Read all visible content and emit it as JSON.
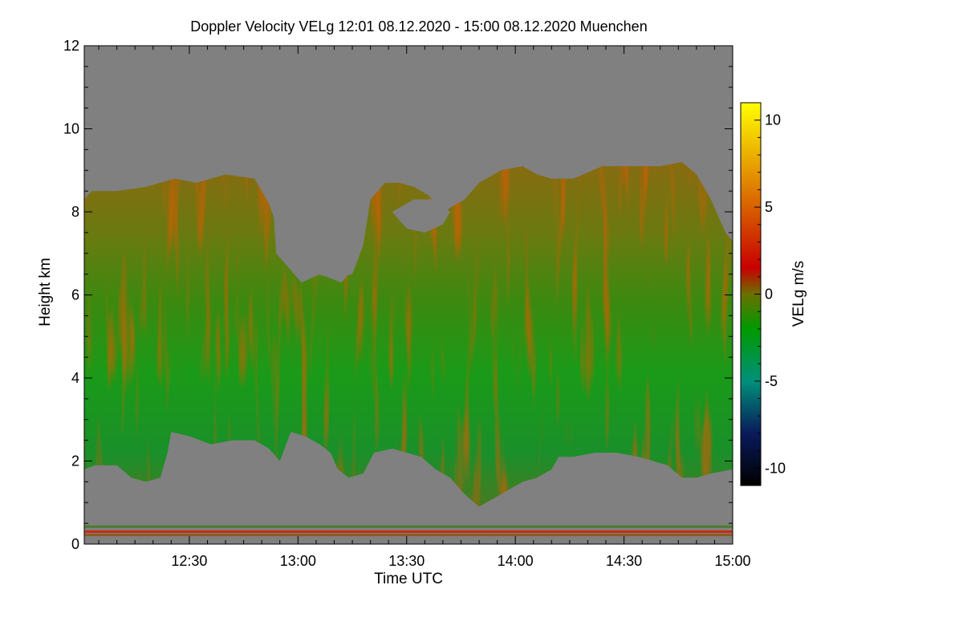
{
  "chart_data": {
    "type": "heatmap",
    "title": "Doppler Velocity VELg   12:01 08.12.2020 - 15:00 08.12.2020 Muenchen",
    "xlabel": "Time UTC",
    "ylabel": "Height km",
    "colorbar_label": "VELg m/s",
    "xlim_minutes": [
      721,
      900
    ],
    "ylim": [
      0,
      12
    ],
    "x_ticks": [
      {
        "minute": 750,
        "label": "12:30"
      },
      {
        "minute": 780,
        "label": "13:00"
      },
      {
        "minute": 810,
        "label": "13:30"
      },
      {
        "minute": 840,
        "label": "14:00"
      },
      {
        "minute": 870,
        "label": "14:30"
      },
      {
        "minute": 900,
        "label": "15:00"
      }
    ],
    "y_ticks": [
      {
        "value": 0,
        "label": "0"
      },
      {
        "value": 2,
        "label": "2"
      },
      {
        "value": 4,
        "label": "4"
      },
      {
        "value": 6,
        "label": "6"
      },
      {
        "value": 8,
        "label": "8"
      },
      {
        "value": 10,
        "label": "10"
      },
      {
        "value": 12,
        "label": "12"
      }
    ],
    "colorbar_range": [
      -11,
      11
    ],
    "colorbar_ticks": [
      {
        "value": 10,
        "label": "10"
      },
      {
        "value": 5,
        "label": "5"
      },
      {
        "value": 0,
        "label": "0"
      },
      {
        "value": -5,
        "label": "-5"
      },
      {
        "value": -10,
        "label": "-10"
      }
    ],
    "colormap": [
      {
        "value": -11,
        "color": "#000000"
      },
      {
        "value": -8,
        "color": "#0a1a5a"
      },
      {
        "value": -5,
        "color": "#00907a"
      },
      {
        "value": -2,
        "color": "#009a00"
      },
      {
        "value": 0,
        "color": "#6a7000"
      },
      {
        "value": 1.5,
        "color": "#c80000"
      },
      {
        "value": 5,
        "color": "#d86000"
      },
      {
        "value": 11,
        "color": "#ffff00"
      }
    ],
    "background_color": "#808080",
    "cloud_top_km": [
      [
        721,
        8.3
      ],
      [
        723,
        8.5
      ],
      [
        730,
        8.5
      ],
      [
        738,
        8.6
      ],
      [
        746,
        8.8
      ],
      [
        752,
        8.7
      ],
      [
        760,
        8.9
      ],
      [
        768,
        8.8
      ],
      [
        772,
        8.2
      ],
      [
        776,
        7.2
      ],
      [
        778,
        6.6
      ],
      [
        781,
        6.3
      ],
      [
        785,
        6.5
      ],
      [
        790,
        6.4
      ],
      [
        795,
        6.5
      ],
      [
        798,
        7.2
      ],
      [
        800,
        8.3
      ],
      [
        804,
        8.7
      ],
      [
        808,
        8.7
      ],
      [
        812,
        8.6
      ],
      [
        816,
        8.4
      ],
      [
        820,
        8.0
      ],
      [
        826,
        8.3
      ],
      [
        830,
        8.7
      ],
      [
        836,
        9.0
      ],
      [
        842,
        9.1
      ],
      [
        846,
        8.9
      ],
      [
        850,
        8.8
      ],
      [
        856,
        8.8
      ],
      [
        864,
        9.1
      ],
      [
        872,
        9.1
      ],
      [
        880,
        9.1
      ],
      [
        886,
        9.2
      ],
      [
        890,
        8.9
      ],
      [
        894,
        8.3
      ],
      [
        898,
        7.5
      ],
      [
        900,
        7.3
      ]
    ],
    "cloud_base_km": [
      [
        721,
        1.8
      ],
      [
        724,
        1.9
      ],
      [
        730,
        1.9
      ],
      [
        734,
        1.6
      ],
      [
        738,
        1.5
      ],
      [
        742,
        1.6
      ],
      [
        744,
        2.2
      ],
      [
        745,
        2.7
      ],
      [
        750,
        2.6
      ],
      [
        756,
        2.4
      ],
      [
        762,
        2.5
      ],
      [
        768,
        2.5
      ],
      [
        772,
        2.3
      ],
      [
        775,
        2.0
      ],
      [
        778,
        2.7
      ],
      [
        782,
        2.6
      ],
      [
        786,
        2.4
      ],
      [
        789,
        2.2
      ],
      [
        791,
        1.8
      ],
      [
        794,
        1.6
      ],
      [
        798,
        1.7
      ],
      [
        801,
        2.2
      ],
      [
        806,
        2.3
      ],
      [
        810,
        2.2
      ],
      [
        814,
        2.1
      ],
      [
        818,
        1.8
      ],
      [
        822,
        1.6
      ],
      [
        826,
        1.2
      ],
      [
        830,
        0.9
      ],
      [
        834,
        1.1
      ],
      [
        838,
        1.3
      ],
      [
        842,
        1.5
      ],
      [
        846,
        1.6
      ],
      [
        850,
        1.8
      ],
      [
        852,
        2.1
      ],
      [
        856,
        2.1
      ],
      [
        862,
        2.2
      ],
      [
        868,
        2.2
      ],
      [
        874,
        2.1
      ],
      [
        878,
        2.0
      ],
      [
        882,
        1.9
      ],
      [
        886,
        1.6
      ],
      [
        890,
        1.6
      ],
      [
        894,
        1.7
      ],
      [
        900,
        1.8
      ]
    ],
    "clear_gaps": [
      {
        "points_minute_km": [
          [
            773,
            8.3
          ],
          [
            774,
            7.0
          ],
          [
            778,
            6.6
          ],
          [
            781,
            6.3
          ],
          [
            786,
            6.5
          ],
          [
            792,
            6.3
          ],
          [
            795,
            6.6
          ],
          [
            797,
            7.8
          ],
          [
            798,
            8.6
          ],
          [
            800,
            9.0
          ],
          [
            790,
            9.0
          ],
          [
            784,
            8.7
          ],
          [
            780,
            8.9
          ],
          [
            776,
            8.7
          ]
        ]
      },
      {
        "points_minute_km": [
          [
            806,
            8.0
          ],
          [
            810,
            7.6
          ],
          [
            815,
            7.5
          ],
          [
            820,
            7.7
          ],
          [
            822,
            8.0
          ],
          [
            818,
            8.3
          ],
          [
            812,
            8.3
          ]
        ]
      }
    ],
    "surface_lines": [
      {
        "height_km": 0.3,
        "color": "#cc2a10"
      },
      {
        "height_km": 0.22,
        "color": "#8a5a20"
      },
      {
        "height_km": 0.42,
        "color": "#4a7a30"
      }
    ]
  }
}
